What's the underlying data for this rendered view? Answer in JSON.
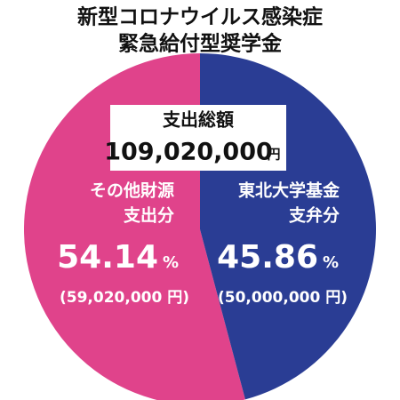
{
  "chart_data": {
    "type": "pie",
    "title_lines": [
      "新型コロナウイルス感染症",
      "緊急給付型奨学金"
    ],
    "total": {
      "label": "支出総額",
      "value": 109020000,
      "value_label": "109,020,000",
      "unit": "円"
    },
    "categories": [
      [
        "その他財源",
        "支出分"
      ],
      [
        "東北大学基金",
        "支弁分"
      ]
    ],
    "values": [
      54.14,
      45.86
    ],
    "unit": "%",
    "colors": [
      "#e0438b",
      "#2a3d94"
    ],
    "amounts": [
      59020000,
      50000000
    ],
    "amount_labels": [
      "(59,020,000 円)",
      "(50,000,000 円)"
    ]
  }
}
